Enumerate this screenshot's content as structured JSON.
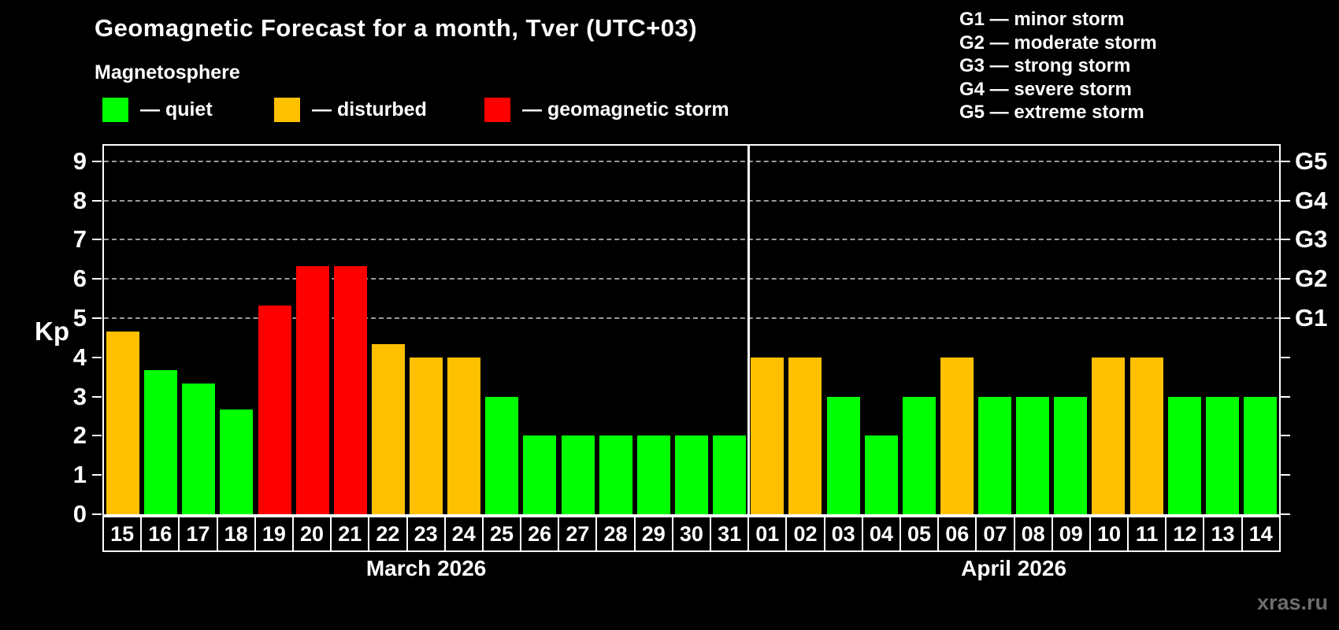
{
  "title": "Geomagnetic Forecast for a month, Tver (UTC+03)",
  "subtitle": "Magnetosphere",
  "legend": {
    "items": [
      {
        "key": "quiet",
        "label": "— quiet",
        "color": "#00ff00",
        "x": 130
      },
      {
        "key": "disturbed",
        "label": "— disturbed",
        "color": "#ffc000",
        "x": 348
      },
      {
        "key": "storm",
        "label": "— geomagnetic storm",
        "color": "#ff0000",
        "x": 615
      }
    ]
  },
  "g_legend": {
    "lines": [
      "G1 — minor storm",
      "G2 — moderate storm",
      "G3 — strong storm",
      "G4 — severe storm",
      "G5 — extreme storm"
    ]
  },
  "axis": {
    "kp_title": "Kp",
    "left_tick_values": [
      0,
      1,
      2,
      3,
      4,
      5,
      6,
      7,
      8,
      9
    ],
    "right_tick_values": [
      0,
      1,
      2,
      3,
      4,
      5,
      6,
      7,
      8,
      9
    ],
    "right_storm_labels": [
      {
        "kp": 5,
        "label": "G1"
      },
      {
        "kp": 6,
        "label": "G2"
      },
      {
        "kp": 7,
        "label": "G3"
      },
      {
        "kp": 8,
        "label": "G4"
      },
      {
        "kp": 9,
        "label": "G5"
      }
    ]
  },
  "watermark": "xras.ru",
  "chart_data": {
    "type": "bar",
    "title": "Geomagnetic Forecast for a month, Tver (UTC+03)",
    "ylabel": "Kp",
    "ylim": [
      0,
      9.4
    ],
    "grid": "dashed horizontal at Kp 5-9 only",
    "gridline_kp_values": [
      5,
      6,
      7,
      8,
      9
    ],
    "legend_position": "top-left",
    "status_colors": {
      "quiet": "#00ff00",
      "disturbed": "#ffc000",
      "storm": "#ff0000"
    },
    "months": [
      {
        "label": "March 2026",
        "points": [
          {
            "day": "15",
            "kp": 4.67,
            "status": "disturbed"
          },
          {
            "day": "16",
            "kp": 3.67,
            "status": "quiet"
          },
          {
            "day": "17",
            "kp": 3.33,
            "status": "quiet"
          },
          {
            "day": "18",
            "kp": 2.67,
            "status": "quiet"
          },
          {
            "day": "19",
            "kp": 5.33,
            "status": "storm"
          },
          {
            "day": "20",
            "kp": 6.33,
            "status": "storm"
          },
          {
            "day": "21",
            "kp": 6.33,
            "status": "storm"
          },
          {
            "day": "22",
            "kp": 4.33,
            "status": "disturbed"
          },
          {
            "day": "23",
            "kp": 4.0,
            "status": "disturbed"
          },
          {
            "day": "24",
            "kp": 4.0,
            "status": "disturbed"
          },
          {
            "day": "25",
            "kp": 3.0,
            "status": "quiet"
          },
          {
            "day": "26",
            "kp": 2.0,
            "status": "quiet"
          },
          {
            "day": "27",
            "kp": 2.0,
            "status": "quiet"
          },
          {
            "day": "28",
            "kp": 2.0,
            "status": "quiet"
          },
          {
            "day": "29",
            "kp": 2.0,
            "status": "quiet"
          },
          {
            "day": "30",
            "kp": 2.0,
            "status": "quiet"
          },
          {
            "day": "31",
            "kp": 2.0,
            "status": "quiet"
          }
        ]
      },
      {
        "label": "April 2026",
        "points": [
          {
            "day": "01",
            "kp": 4.0,
            "status": "disturbed"
          },
          {
            "day": "02",
            "kp": 4.0,
            "status": "disturbed"
          },
          {
            "day": "03",
            "kp": 3.0,
            "status": "quiet"
          },
          {
            "day": "04",
            "kp": 2.0,
            "status": "quiet"
          },
          {
            "day": "05",
            "kp": 3.0,
            "status": "quiet"
          },
          {
            "day": "06",
            "kp": 4.0,
            "status": "disturbed"
          },
          {
            "day": "07",
            "kp": 3.0,
            "status": "quiet"
          },
          {
            "day": "08",
            "kp": 3.0,
            "status": "quiet"
          },
          {
            "day": "09",
            "kp": 3.0,
            "status": "quiet"
          },
          {
            "day": "10",
            "kp": 4.0,
            "status": "disturbed"
          },
          {
            "day": "11",
            "kp": 4.0,
            "status": "disturbed"
          },
          {
            "day": "12",
            "kp": 3.0,
            "status": "quiet"
          },
          {
            "day": "13",
            "kp": 3.0,
            "status": "quiet"
          },
          {
            "day": "14",
            "kp": 3.0,
            "status": "quiet"
          }
        ]
      }
    ]
  }
}
